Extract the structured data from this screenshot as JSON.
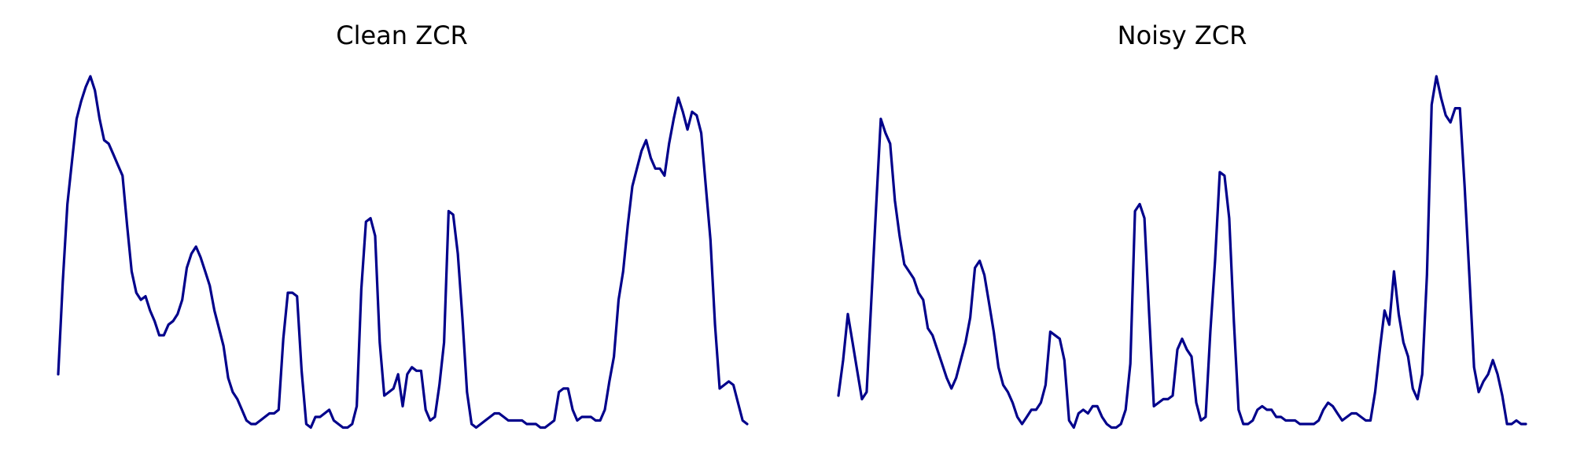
{
  "colors": {
    "line": "#00008b",
    "background": "#ffffff",
    "title": "#000000"
  },
  "chart_data": [
    {
      "type": "line",
      "title": "Clean ZCR",
      "xlabel": "",
      "ylabel": "",
      "grid": false,
      "axes_visible": false,
      "x_range": [
        0,
        148
      ],
      "ylim": [
        0,
        1
      ],
      "series": [
        {
          "values": [
            0.16,
            0.42,
            0.64,
            0.76,
            0.88,
            0.93,
            0.97,
            1.0,
            0.96,
            0.88,
            0.82,
            0.81,
            0.78,
            0.75,
            0.72,
            0.58,
            0.45,
            0.39,
            0.37,
            0.38,
            0.34,
            0.31,
            0.27,
            0.27,
            0.3,
            0.31,
            0.33,
            0.37,
            0.46,
            0.5,
            0.52,
            0.49,
            0.45,
            0.41,
            0.34,
            0.29,
            0.24,
            0.15,
            0.11,
            0.09,
            0.06,
            0.03,
            0.02,
            0.02,
            0.03,
            0.04,
            0.05,
            0.05,
            0.06,
            0.26,
            0.39,
            0.39,
            0.38,
            0.17,
            0.02,
            0.01,
            0.04,
            0.04,
            0.05,
            0.06,
            0.03,
            0.02,
            0.01,
            0.01,
            0.02,
            0.07,
            0.4,
            0.59,
            0.6,
            0.55,
            0.25,
            0.1,
            0.11,
            0.12,
            0.16,
            0.07,
            0.16,
            0.18,
            0.17,
            0.17,
            0.06,
            0.03,
            0.04,
            0.13,
            0.25,
            0.62,
            0.61,
            0.5,
            0.32,
            0.11,
            0.02,
            0.01,
            0.02,
            0.03,
            0.04,
            0.05,
            0.05,
            0.04,
            0.03,
            0.03,
            0.03,
            0.03,
            0.02,
            0.02,
            0.02,
            0.01,
            0.01,
            0.02,
            0.03,
            0.11,
            0.12,
            0.12,
            0.06,
            0.03,
            0.04,
            0.04,
            0.04,
            0.03,
            0.03,
            0.06,
            0.14,
            0.21,
            0.37,
            0.45,
            0.58,
            0.69,
            0.74,
            0.79,
            0.82,
            0.77,
            0.74,
            0.74,
            0.72,
            0.81,
            0.88,
            0.94,
            0.9,
            0.85,
            0.9,
            0.89,
            0.84,
            0.69,
            0.54,
            0.3,
            0.12,
            0.13,
            0.14,
            0.13,
            0.08,
            0.03,
            0.02
          ]
        }
      ]
    },
    {
      "type": "line",
      "title": "Noisy ZCR",
      "xlabel": "",
      "ylabel": "",
      "grid": false,
      "axes_visible": false,
      "x_range": [
        0,
        148
      ],
      "ylim": [
        0,
        1
      ],
      "series": [
        {
          "values": [
            0.1,
            0.2,
            0.33,
            0.25,
            0.17,
            0.09,
            0.11,
            0.37,
            0.63,
            0.88,
            0.84,
            0.81,
            0.65,
            0.55,
            0.47,
            0.45,
            0.43,
            0.39,
            0.37,
            0.29,
            0.27,
            0.23,
            0.19,
            0.15,
            0.12,
            0.15,
            0.2,
            0.25,
            0.32,
            0.46,
            0.48,
            0.44,
            0.36,
            0.28,
            0.18,
            0.13,
            0.11,
            0.08,
            0.04,
            0.02,
            0.04,
            0.06,
            0.06,
            0.08,
            0.13,
            0.28,
            0.27,
            0.26,
            0.2,
            0.03,
            0.01,
            0.05,
            0.06,
            0.05,
            0.07,
            0.07,
            0.04,
            0.02,
            0.01,
            0.01,
            0.02,
            0.06,
            0.19,
            0.62,
            0.64,
            0.6,
            0.33,
            0.07,
            0.08,
            0.09,
            0.09,
            0.1,
            0.23,
            0.26,
            0.23,
            0.21,
            0.08,
            0.03,
            0.04,
            0.28,
            0.48,
            0.73,
            0.72,
            0.6,
            0.31,
            0.06,
            0.02,
            0.02,
            0.03,
            0.06,
            0.07,
            0.06,
            0.06,
            0.04,
            0.04,
            0.03,
            0.03,
            0.03,
            0.02,
            0.02,
            0.02,
            0.02,
            0.03,
            0.06,
            0.08,
            0.07,
            0.05,
            0.03,
            0.04,
            0.05,
            0.05,
            0.04,
            0.03,
            0.03,
            0.11,
            0.23,
            0.34,
            0.3,
            0.45,
            0.33,
            0.25,
            0.21,
            0.12,
            0.09,
            0.16,
            0.44,
            0.92,
            1.0,
            0.94,
            0.89,
            0.87,
            0.91,
            0.91,
            0.69,
            0.44,
            0.18,
            0.11,
            0.14,
            0.16,
            0.2,
            0.16,
            0.1,
            0.02,
            0.02,
            0.03,
            0.02,
            0.02
          ]
        }
      ]
    }
  ]
}
